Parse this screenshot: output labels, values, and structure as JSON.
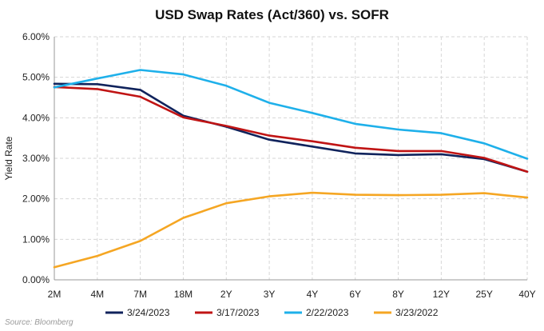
{
  "chart_data": {
    "type": "line",
    "title": "USD Swap Rates (Act/360) vs. SOFR",
    "xlabel": "",
    "ylabel": "Yield Rate",
    "categories": [
      "2M",
      "4M",
      "7M",
      "18M",
      "2Y",
      "3Y",
      "4Y",
      "6Y",
      "8Y",
      "12Y",
      "25Y",
      "40Y"
    ],
    "y_ticks": [
      "0.00%",
      "1.00%",
      "2.00%",
      "3.00%",
      "4.00%",
      "5.00%",
      "6.00%"
    ],
    "ylim": [
      0,
      6
    ],
    "grid": true,
    "legend_position": "bottom",
    "series": [
      {
        "name": "3/24/2023",
        "color": "#10235c",
        "values": [
          4.84,
          4.83,
          4.69,
          4.05,
          3.78,
          3.46,
          3.29,
          3.12,
          3.08,
          3.1,
          2.98,
          2.67
        ]
      },
      {
        "name": "3/17/2023",
        "color": "#c01414",
        "values": [
          4.76,
          4.71,
          4.52,
          4.01,
          3.8,
          3.56,
          3.42,
          3.26,
          3.18,
          3.18,
          3.01,
          2.67
        ]
      },
      {
        "name": "2/22/2023",
        "color": "#1eb0ea",
        "values": [
          4.75,
          4.97,
          5.18,
          5.07,
          4.79,
          4.37,
          4.12,
          3.85,
          3.71,
          3.62,
          3.37,
          2.99
        ]
      },
      {
        "name": "3/23/2022",
        "color": "#f5a623",
        "values": [
          0.31,
          0.59,
          0.96,
          1.53,
          1.89,
          2.06,
          2.15,
          2.1,
          2.09,
          2.1,
          2.14,
          2.03
        ]
      }
    ]
  },
  "source": "Source: Bloomberg"
}
